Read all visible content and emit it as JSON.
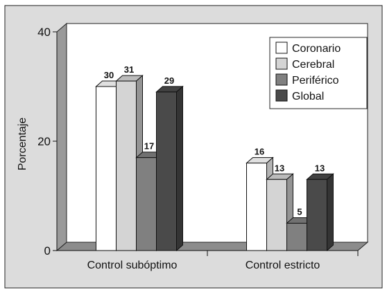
{
  "chart_data": {
    "type": "bar",
    "style": "3d-clustered",
    "ylabel": "Porcentaje",
    "xlabel": "",
    "ylim": [
      0,
      40
    ],
    "yticks": [
      0,
      20,
      40
    ],
    "categories": [
      "Control subóptimo",
      "Control estricto"
    ],
    "series": [
      {
        "name": "Coronario",
        "color": "#ffffff",
        "values": [
          30,
          16
        ]
      },
      {
        "name": "Cerebral",
        "color": "#d4d4d4",
        "values": [
          31,
          13
        ]
      },
      {
        "name": "Periférico",
        "color": "#808080",
        "values": [
          17,
          5
        ]
      },
      {
        "name": "Global",
        "color": "#4a4a4a",
        "values": [
          29,
          13
        ]
      }
    ],
    "legend_position": "top-right",
    "background": "#dcdcdc",
    "grid": false
  }
}
